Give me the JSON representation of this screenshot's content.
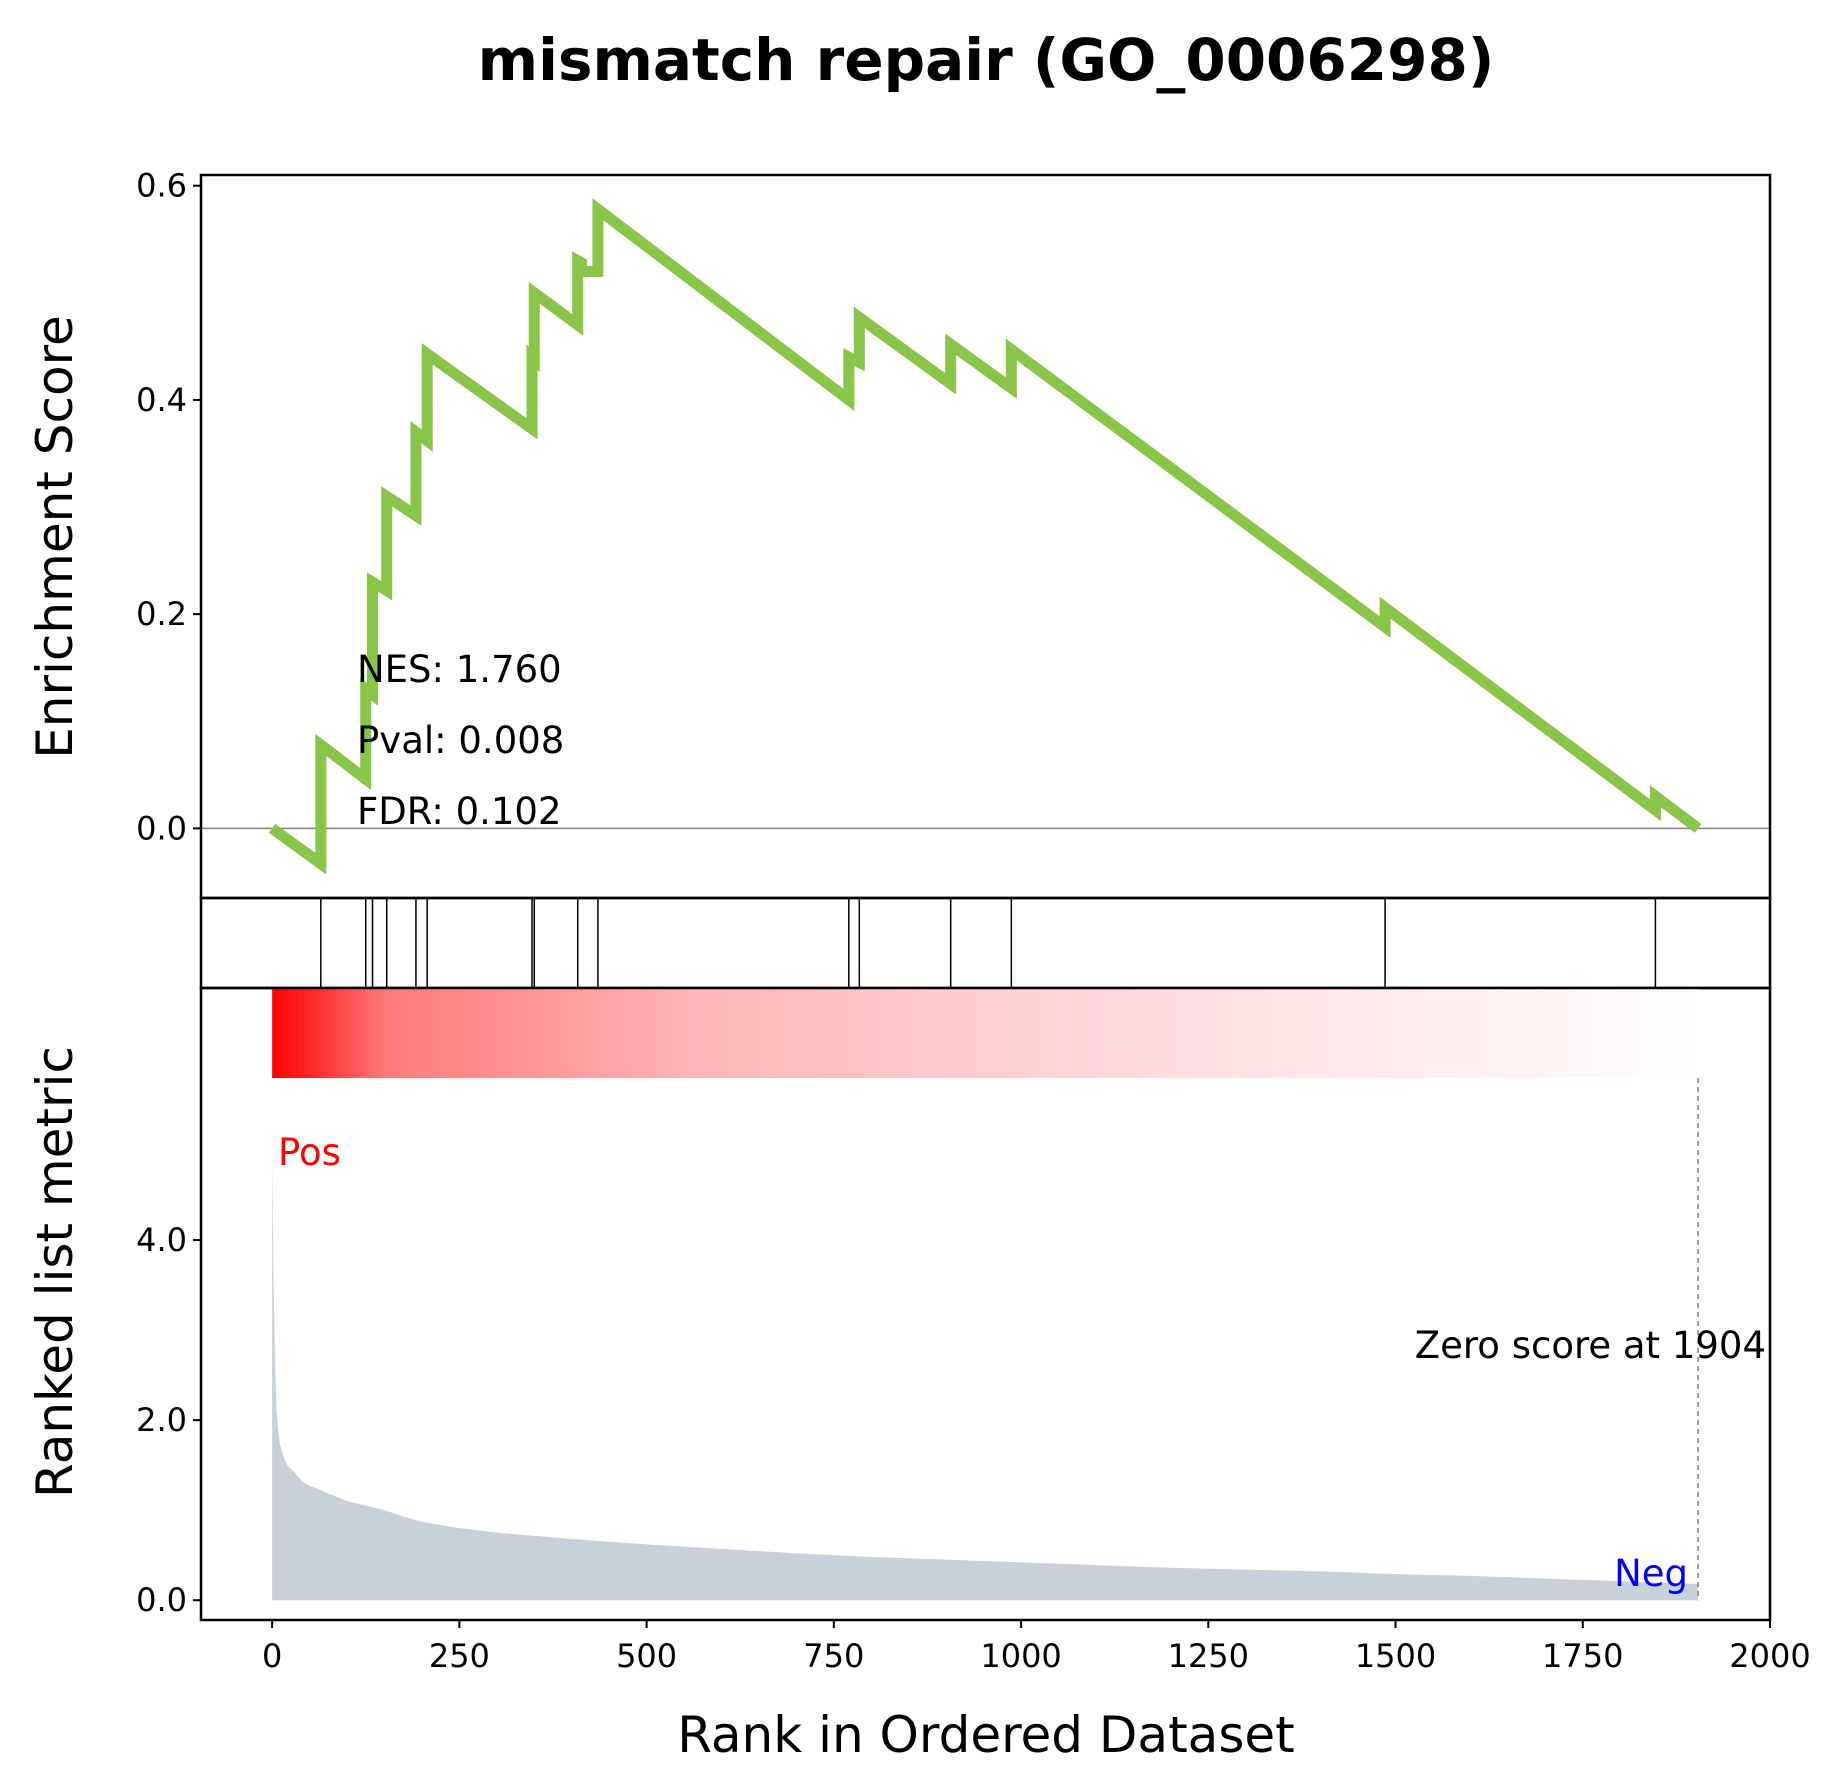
{
  "chart_data": {
    "type": "line",
    "title": "mismatch repair (GO_0006298)",
    "xlabel": "Rank in Ordered Dataset",
    "xlim": [
      -95,
      2000
    ],
    "x_ticks": [
      "0",
      "250",
      "500",
      "750",
      "1000",
      "1250",
      "1500",
      "1750",
      "2000"
    ],
    "x_tick_values": [
      0,
      250,
      500,
      750,
      1000,
      1250,
      1500,
      1750,
      2000
    ],
    "panels": [
      {
        "id": "enrichment",
        "ylabel": "Enrichment Score",
        "ylim": [
          -0.065,
          0.61
        ],
        "y_ticks": [
          "0.0",
          "0.2",
          "0.4",
          "0.6"
        ],
        "y_tick_values": [
          0.0,
          0.2,
          0.4,
          0.6
        ],
        "zero_line": true,
        "series": [
          {
            "color": "#88c548",
            "x": [
              0,
              65,
              65,
              125,
              125,
              134,
              134,
              153,
              153,
              192,
              192,
              207,
              207,
              347,
              347,
              350,
              350,
              408,
              408,
              413,
              413,
              435,
              435,
              770,
              770,
              784,
              784,
              906,
              906,
              987,
              987,
              1486,
              1486,
              1847,
              1847,
              1904
            ],
            "y": [
              0.0,
              -0.033,
              0.078,
              0.046,
              0.13,
              0.125,
              0.23,
              0.222,
              0.31,
              0.292,
              0.37,
              0.362,
              0.443,
              0.373,
              0.44,
              0.438,
              0.5,
              0.47,
              0.53,
              0.528,
              0.52,
              0.52,
              0.578,
              0.4,
              0.44,
              0.435,
              0.477,
              0.415,
              0.452,
              0.411,
              0.447,
              0.188,
              0.206,
              0.017,
              0.03,
              0.0
            ]
          }
        ],
        "annotations": [
          "NES: 1.760",
          "Pval: 0.008",
          "FDR: 0.102"
        ]
      },
      {
        "id": "hits",
        "hit_ranks": [
          65,
          125,
          134,
          153,
          192,
          207,
          347,
          350,
          408,
          435,
          770,
          784,
          906,
          987,
          1486,
          1847
        ]
      },
      {
        "id": "ranked-metric",
        "type": "area",
        "ylabel": "Ranked list metric",
        "ylim": [
          -0.22,
          6.8
        ],
        "y_ticks": [
          "0.0",
          "2.0",
          "4.0"
        ],
        "y_tick_values": [
          0.0,
          2.0,
          4.0
        ],
        "fill_color": "#c6d1d9",
        "heatmap_colors": [
          "#ff0000",
          "#ffffff"
        ],
        "series": [
          {
            "x": [
              0,
              2,
              4,
              6,
              8,
              10,
              15,
              20,
              30,
              40,
              50,
              60,
              70,
              80,
              100,
              125,
              150,
              175,
              200,
              250,
              300,
              400,
              500,
              600,
              700,
              800,
              900,
              1000,
              1100,
              1200,
              1300,
              1400,
              1500,
              1600,
              1700,
              1800,
              1904
            ],
            "y": [
              4.9,
              3.5,
              2.6,
              2.1,
              1.9,
              1.75,
              1.6,
              1.5,
              1.42,
              1.32,
              1.27,
              1.24,
              1.2,
              1.17,
              1.1,
              1.05,
              1.0,
              0.93,
              0.87,
              0.8,
              0.75,
              0.68,
              0.62,
              0.57,
              0.52,
              0.48,
              0.45,
              0.42,
              0.39,
              0.36,
              0.34,
              0.32,
              0.29,
              0.27,
              0.24,
              0.21,
              0.18
            ]
          }
        ],
        "labels": {
          "pos": "Pos",
          "neg": "Neg",
          "zero": "Zero score at 1904"
        },
        "pos_color": "#ff0000",
        "neg_color": "#0000ff",
        "zero_rank": 1904
      }
    ]
  }
}
